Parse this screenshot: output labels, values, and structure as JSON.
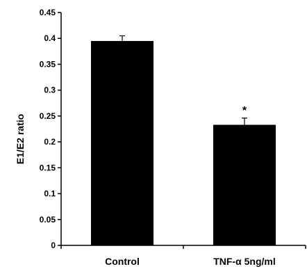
{
  "chart_data": {
    "type": "bar",
    "categories": [
      "Control",
      "TNF-α 5ng/ml"
    ],
    "values": [
      0.395,
      0.233
    ],
    "errors": [
      0.01,
      0.013
    ],
    "ylabel": "E1/E2 ratio",
    "ylim": [
      0,
      0.45
    ],
    "yticks": [
      "0",
      "0.05",
      "0.1",
      "0.15",
      "0.2",
      "0.25",
      "0.3",
      "0.35",
      "0.4",
      "0.45"
    ],
    "annotations": [
      {
        "category": "TNF-α 5ng/ml",
        "text": "*"
      }
    ],
    "bar_color": "#000000",
    "grid": false,
    "legend": "none"
  }
}
